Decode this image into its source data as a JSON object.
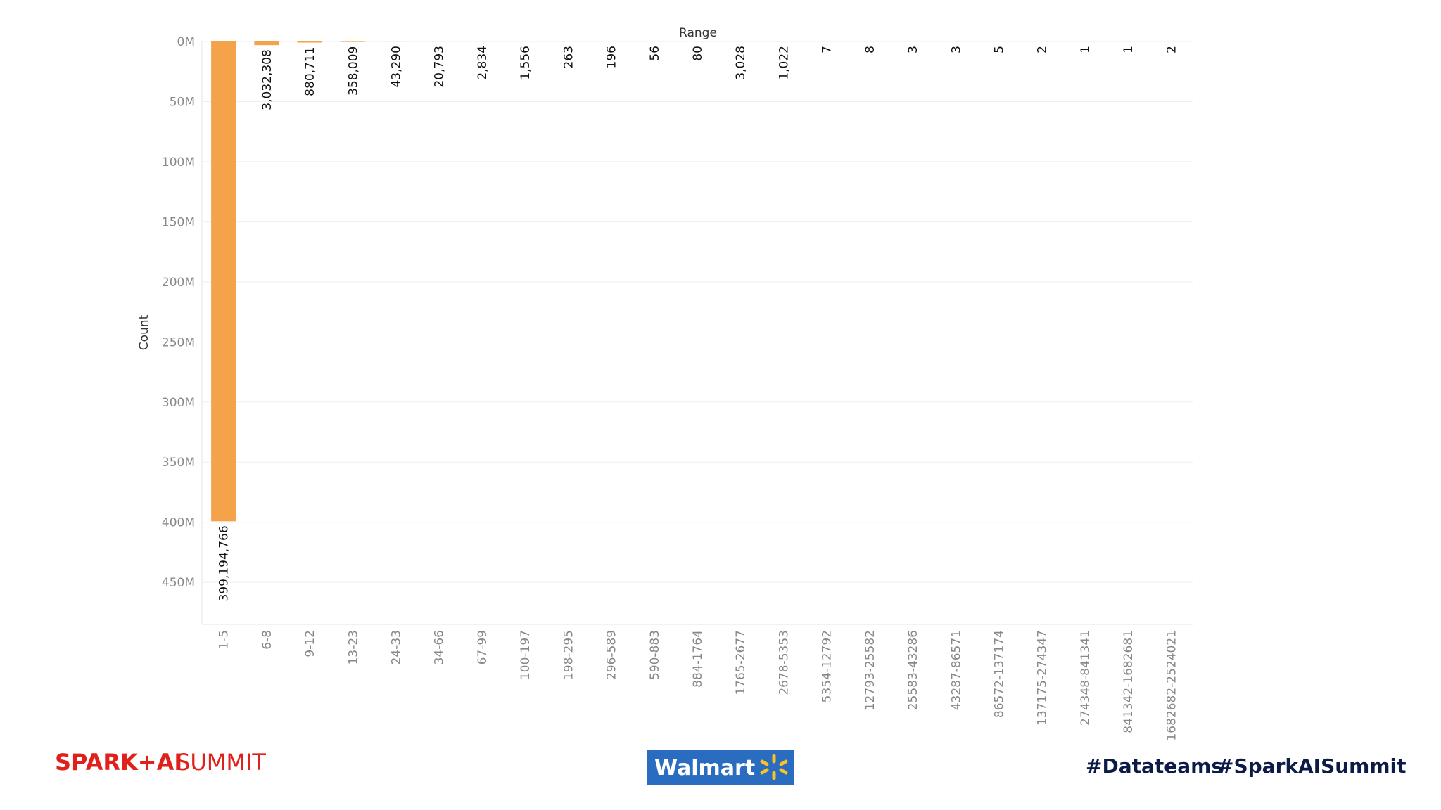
{
  "chart_data": {
    "type": "bar",
    "x_label": "Range",
    "y_label": "Count",
    "categories": [
      "1-5",
      "6-8",
      "9-12",
      "13-23",
      "24-33",
      "34-66",
      "67-99",
      "100-197",
      "198-295",
      "296-589",
      "590-883",
      "884-1764",
      "1765-2677",
      "2678-5353",
      "5354-12792",
      "12793-25582",
      "25583-43286",
      "43287-86571",
      "86572-137174",
      "137175-274347",
      "274348-841341",
      "841342-1682681",
      "1682682-2524021"
    ],
    "values": [
      399194766,
      3032308,
      880711,
      358009,
      43290,
      20793,
      2834,
      1556,
      263,
      196,
      56,
      80,
      3028,
      1022,
      7,
      8,
      3,
      3,
      5,
      2,
      1,
      1,
      2
    ],
    "value_labels": [
      "399,194,766",
      "3,032,308",
      "880,711",
      "358,009",
      "43,290",
      "20,793",
      "2,834",
      "1,556",
      "263",
      "196",
      "56",
      "80",
      "3,028",
      "1,022",
      "7",
      "8",
      "3",
      "3",
      "5",
      "2",
      "1",
      "1",
      "2"
    ],
    "color": "#f5a34a",
    "ylim": [
      0,
      485000000
    ],
    "y_reversed": true,
    "yticks": [
      {
        "value": 0,
        "label": "0M"
      },
      {
        "value": 50000000,
        "label": "50M"
      },
      {
        "value": 100000000,
        "label": "100M"
      },
      {
        "value": 150000000,
        "label": "150M"
      },
      {
        "value": 200000000,
        "label": "200M"
      },
      {
        "value": 250000000,
        "label": "250M"
      },
      {
        "value": 300000000,
        "label": "300M"
      },
      {
        "value": 350000000,
        "label": "350M"
      },
      {
        "value": 400000000,
        "label": "400M"
      },
      {
        "value": 450000000,
        "label": "450M"
      }
    ],
    "grid": true
  },
  "footer": {
    "brand": "SPARK+AI",
    "event": "SUMMIT",
    "sponsor": "Walmart",
    "tag1": "#Datateams",
    "tag2": "#SparkAISummit"
  }
}
